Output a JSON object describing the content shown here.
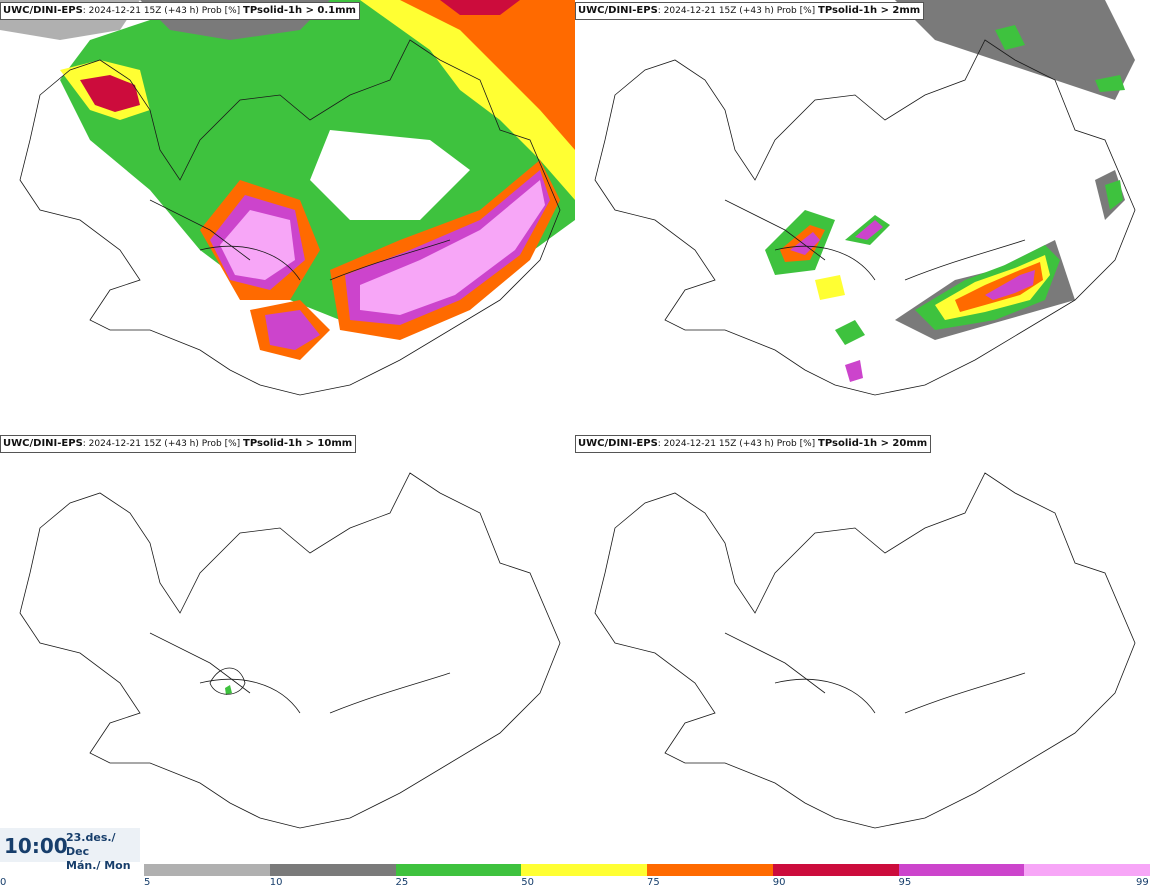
{
  "panels": [
    {
      "model": "UWC/DINI-EPS",
      "info": ": 2024-12-21 15Z (+43 h) Prob [%]",
      "variable": "TPsolid-1h > 0.1mm"
    },
    {
      "model": "UWC/DINI-EPS",
      "info": ": 2024-12-21 15Z (+43 h) Prob [%]",
      "variable": "TPsolid-1h > 2mm"
    },
    {
      "model": "UWC/DINI-EPS",
      "info": ": 2024-12-21 15Z (+43 h) Prob [%]",
      "variable": "TPsolid-1h > 10mm"
    },
    {
      "model": "UWC/DINI-EPS",
      "info": ": 2024-12-21 15Z (+43 h) Prob [%]",
      "variable": "TPsolid-1h > 20mm"
    }
  ],
  "valid_time": {
    "time": "10:00",
    "date": "23.des./ Dec",
    "day": "Mán./ Mon"
  },
  "colorbar": {
    "ticks": [
      "0",
      "5",
      "10",
      "25",
      "50",
      "75",
      "90",
      "95",
      "99"
    ],
    "colors": [
      "#b0b0b0",
      "#7a7a7a",
      "#3ec23e",
      "#ffff33",
      "#ff6a00",
      "#cc0c3c",
      "#cc44cc",
      "#f7a6f7"
    ]
  },
  "colors": {
    "coastline": "#1a1a1a",
    "text": "#173e6b"
  }
}
